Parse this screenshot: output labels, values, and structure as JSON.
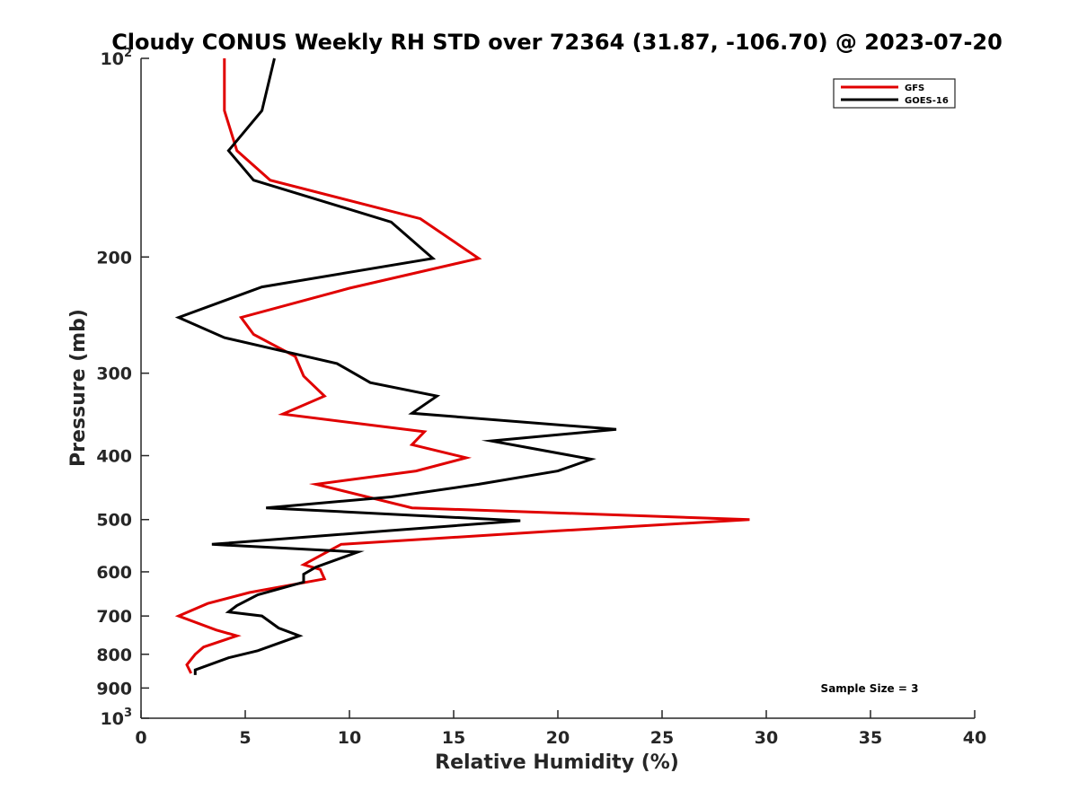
{
  "chart_data": {
    "type": "line",
    "title": "Cloudy CONUS Weekly RH STD over 72364 (31.87, -106.70) @ 2023-07-20",
    "xlabel": "Relative Humidity (%)",
    "ylabel": "Pressure (mb)",
    "xlim": [
      0,
      40
    ],
    "ylim": [
      1000,
      100
    ],
    "yscale": "log",
    "y_reversed": true,
    "grid": false,
    "legend_position": "top-right",
    "x_ticks": [
      "0",
      "5",
      "10",
      "15",
      "20",
      "25",
      "30",
      "35",
      "40"
    ],
    "x_tick_values": [
      0,
      5,
      10,
      15,
      20,
      25,
      30,
      35,
      40
    ],
    "y_ticks": [
      {
        "value": 100,
        "base": "10",
        "sup": "2"
      },
      {
        "value": 200,
        "base": "200",
        "sup": ""
      },
      {
        "value": 300,
        "base": "300",
        "sup": ""
      },
      {
        "value": 400,
        "base": "400",
        "sup": ""
      },
      {
        "value": 500,
        "base": "500",
        "sup": ""
      },
      {
        "value": 600,
        "base": "600",
        "sup": ""
      },
      {
        "value": 700,
        "base": "700",
        "sup": ""
      },
      {
        "value": 800,
        "base": "800",
        "sup": ""
      },
      {
        "value": 900,
        "base": "900",
        "sup": ""
      },
      {
        "value": 1000,
        "base": "10",
        "sup": "3"
      }
    ],
    "series": [
      {
        "name": "GFS",
        "color": "#e00000",
        "points": [
          {
            "x": 4.0,
            "y": 100
          },
          {
            "x": 4.0,
            "y": 120
          },
          {
            "x": 4.6,
            "y": 138
          },
          {
            "x": 6.2,
            "y": 153
          },
          {
            "x": 13.4,
            "y": 175
          },
          {
            "x": 16.2,
            "y": 201
          },
          {
            "x": 10.0,
            "y": 223
          },
          {
            "x": 4.8,
            "y": 247
          },
          {
            "x": 5.4,
            "y": 262
          },
          {
            "x": 7.4,
            "y": 283
          },
          {
            "x": 7.8,
            "y": 303
          },
          {
            "x": 8.8,
            "y": 325
          },
          {
            "x": 6.8,
            "y": 346
          },
          {
            "x": 13.6,
            "y": 368
          },
          {
            "x": 13.0,
            "y": 385
          },
          {
            "x": 15.6,
            "y": 403
          },
          {
            "x": 13.2,
            "y": 422
          },
          {
            "x": 8.4,
            "y": 442
          },
          {
            "x": 13.0,
            "y": 480
          },
          {
            "x": 29.2,
            "y": 500
          },
          {
            "x": 20.0,
            "y": 520
          },
          {
            "x": 9.6,
            "y": 545
          },
          {
            "x": 7.8,
            "y": 585
          },
          {
            "x": 8.6,
            "y": 595
          },
          {
            "x": 8.8,
            "y": 615
          },
          {
            "x": 5.2,
            "y": 645
          },
          {
            "x": 3.2,
            "y": 670
          },
          {
            "x": 1.8,
            "y": 700
          },
          {
            "x": 3.6,
            "y": 735
          },
          {
            "x": 4.6,
            "y": 750
          },
          {
            "x": 3.0,
            "y": 780
          },
          {
            "x": 2.6,
            "y": 800
          },
          {
            "x": 2.2,
            "y": 830
          },
          {
            "x": 2.4,
            "y": 855
          }
        ]
      },
      {
        "name": "GOES-16",
        "color": "#000000",
        "points": [
          {
            "x": 6.4,
            "y": 100
          },
          {
            "x": 5.8,
            "y": 120
          },
          {
            "x": 4.2,
            "y": 138
          },
          {
            "x": 5.4,
            "y": 153
          },
          {
            "x": 12.0,
            "y": 177
          },
          {
            "x": 14.0,
            "y": 201
          },
          {
            "x": 5.8,
            "y": 222
          },
          {
            "x": 1.8,
            "y": 247
          },
          {
            "x": 4.0,
            "y": 265
          },
          {
            "x": 9.4,
            "y": 290
          },
          {
            "x": 11.0,
            "y": 310
          },
          {
            "x": 14.2,
            "y": 325
          },
          {
            "x": 13.0,
            "y": 345
          },
          {
            "x": 22.8,
            "y": 365
          },
          {
            "x": 16.8,
            "y": 380
          },
          {
            "x": 21.6,
            "y": 405
          },
          {
            "x": 20.0,
            "y": 422
          },
          {
            "x": 16.2,
            "y": 442
          },
          {
            "x": 12.0,
            "y": 462
          },
          {
            "x": 6.0,
            "y": 480
          },
          {
            "x": 18.2,
            "y": 502
          },
          {
            "x": 11.8,
            "y": 520
          },
          {
            "x": 3.4,
            "y": 545
          },
          {
            "x": 10.4,
            "y": 560
          },
          {
            "x": 8.4,
            "y": 590
          },
          {
            "x": 7.8,
            "y": 605
          },
          {
            "x": 7.8,
            "y": 622
          },
          {
            "x": 5.6,
            "y": 650
          },
          {
            "x": 4.6,
            "y": 675
          },
          {
            "x": 4.2,
            "y": 690
          },
          {
            "x": 5.8,
            "y": 700
          },
          {
            "x": 6.6,
            "y": 730
          },
          {
            "x": 7.6,
            "y": 750
          },
          {
            "x": 5.6,
            "y": 790
          },
          {
            "x": 4.2,
            "y": 810
          },
          {
            "x": 2.6,
            "y": 845
          },
          {
            "x": 2.6,
            "y": 860
          }
        ]
      }
    ],
    "annotations": [
      "Sample Size = 3"
    ]
  }
}
